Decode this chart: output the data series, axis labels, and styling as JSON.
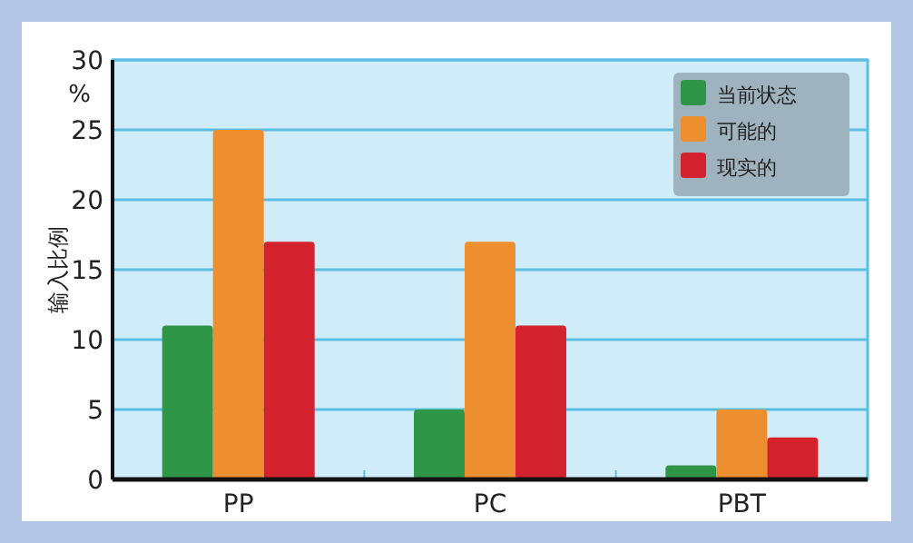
{
  "chart_data": {
    "type": "bar",
    "ylabel": "输入比例",
    "annotations": [
      "%"
    ],
    "categories": [
      "PP",
      "PC",
      "PBT"
    ],
    "series": [
      {
        "name": "当前状态",
        "color": "#2f9648",
        "values": [
          11,
          5,
          1
        ]
      },
      {
        "name": "可能的",
        "color": "#ee8f2f",
        "values": [
          25,
          17,
          5
        ]
      },
      {
        "name": "现实的",
        "color": "#d3222e",
        "values": [
          17,
          11,
          3
        ]
      }
    ],
    "ylim": [
      0,
      30
    ],
    "yticks": [
      0,
      5,
      10,
      15,
      20,
      25,
      30
    ],
    "grid": "y",
    "legend": "top right"
  }
}
